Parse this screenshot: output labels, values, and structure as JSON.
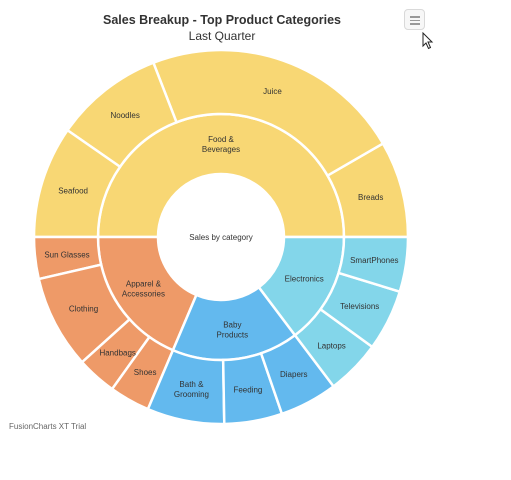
{
  "chart_data": {
    "type": "sunburst",
    "title": "Sales Breakup - Top Product Categories",
    "subtitle": "Last Quarter",
    "center_label": "Sales by category",
    "categories": [
      {
        "name": "Food & Beverages",
        "label_lines": [
          "Food &",
          "Beverages"
        ],
        "value": 0.5,
        "color": "#f8d774",
        "children": [
          {
            "name": "Breads",
            "value": 0.0833
          },
          {
            "name": "Juice",
            "value": 0.2256
          },
          {
            "name": "Noodles",
            "value": 0.0944
          },
          {
            "name": "Seafood",
            "value": 0.0967
          }
        ]
      },
      {
        "name": "Apparel & Accessories",
        "label_lines": [
          "Apparel &",
          "Accessories"
        ],
        "value": 0.1861,
        "color": "#ee9a68",
        "children": [
          {
            "name": "Sun Glasses",
            "value": 0.0361
          },
          {
            "name": "Clothing",
            "value": 0.0806
          },
          {
            "name": "Handbags",
            "value": 0.0344
          },
          {
            "name": "Shoes",
            "value": 0.035
          }
        ]
      },
      {
        "name": "Baby Products",
        "label_lines": [
          "Baby",
          "Products"
        ],
        "value": 0.1667,
        "color": "#63b9ee",
        "children": [
          {
            "name": "Bath & Grooming",
            "label_lines": [
              "Bath &",
              "Grooming"
            ],
            "value": 0.0667
          },
          {
            "name": "Feeding",
            "value": 0.05
          },
          {
            "name": "Diapers",
            "value": 0.05
          }
        ]
      },
      {
        "name": "Electronics",
        "value": 0.1472,
        "color": "#83d6ea",
        "children": [
          {
            "name": "Laptops",
            "value": 0.0472
          },
          {
            "name": "Televisions",
            "value": 0.0528
          },
          {
            "name": "SmartPhones",
            "value": 0.0472
          }
        ]
      }
    ]
  },
  "watermark": "FusionCharts XT Trial",
  "menu_icon": "hamburger-menu-icon",
  "cursor_icon": "mouse-pointer-icon"
}
